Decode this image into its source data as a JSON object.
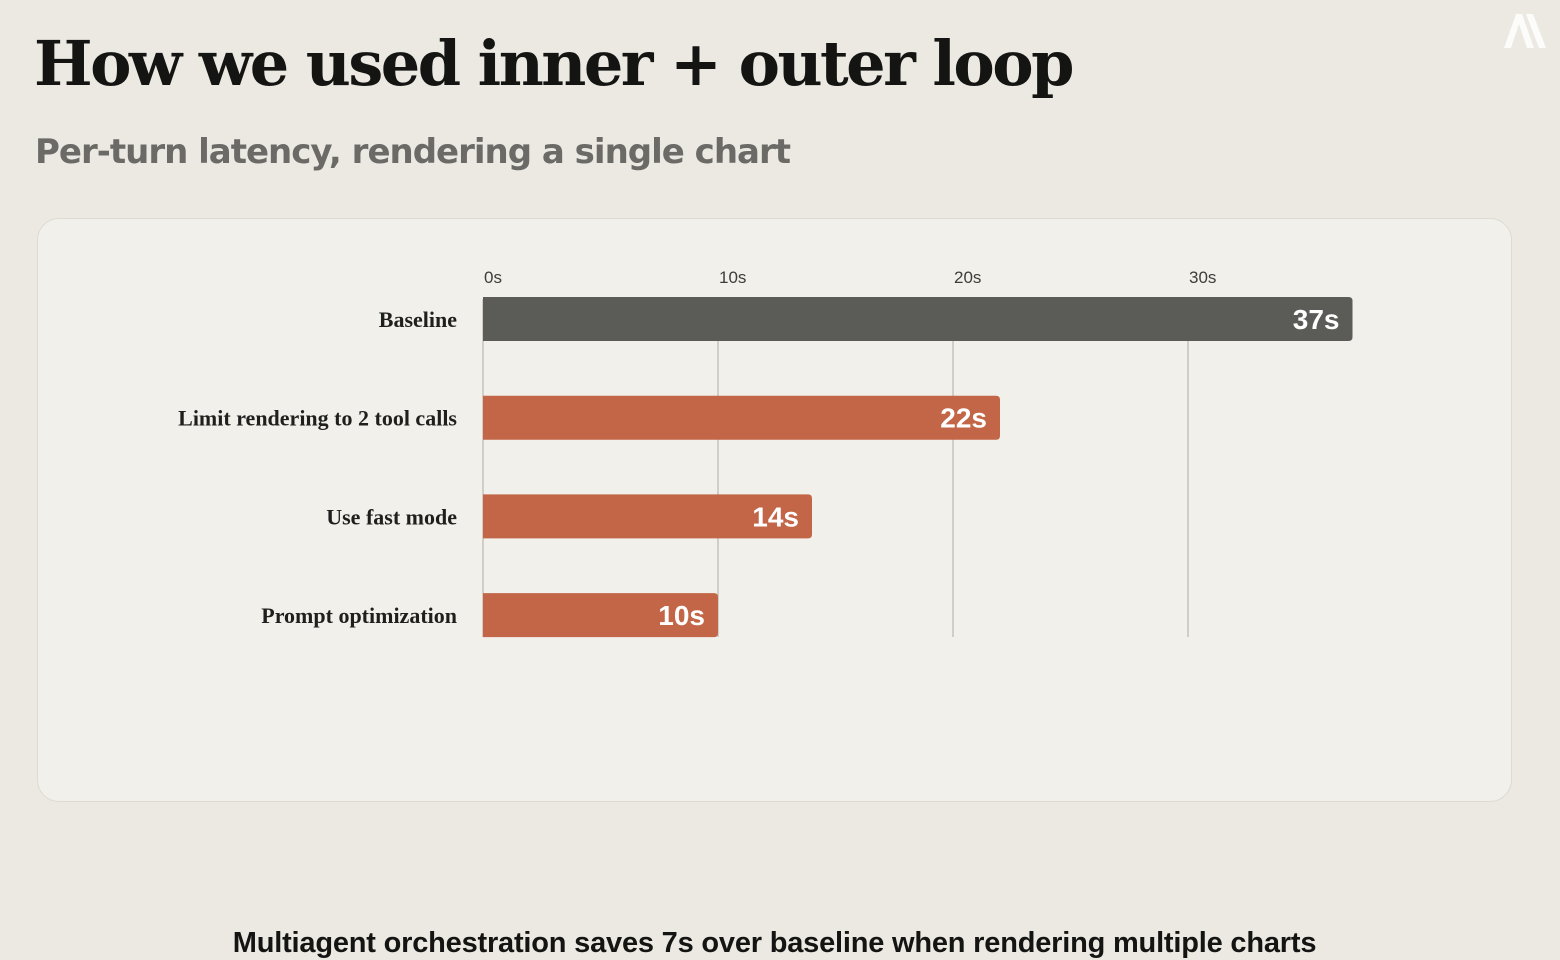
{
  "slide": {
    "title": "How we used inner + outer loop",
    "subtitle": "Per-turn latency, rendering a single chart",
    "footnote": "Multiagent orchestration saves 7s over baseline when rendering multiple charts",
    "logo_icon": "anthropic-logo-icon"
  },
  "chart_data": {
    "type": "bar",
    "orientation": "horizontal",
    "categories": [
      "Baseline",
      "Limit rendering to 2 tool calls",
      "Use fast mode",
      "Prompt optimization"
    ],
    "values": [
      37,
      22,
      14,
      10
    ],
    "value_labels": [
      "37s",
      "22s",
      "14s",
      "10s"
    ],
    "x_ticks": [
      0,
      10,
      20,
      30
    ],
    "x_tick_labels": [
      "0s",
      "10s",
      "20s",
      "30s"
    ],
    "xlim": [
      0,
      40
    ],
    "axis_position": "top",
    "grid": true,
    "colors": {
      "baseline": "#5b5c57",
      "improved": "#c26647",
      "grid": "#b9b7b0"
    }
  }
}
